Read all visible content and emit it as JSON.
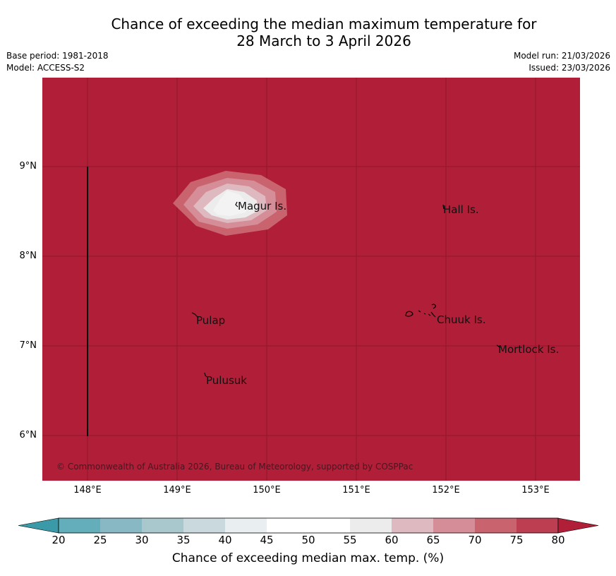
{
  "title": {
    "line1": "Chance of exceeding the median maximum temperature for",
    "line2": "28 March to 3 April 2026"
  },
  "meta": {
    "base_period": "Base period: 1981-2018",
    "model": "Model: ACCESS-S2",
    "model_run": "Model run: 21/03/2026",
    "issued": "Issued: 23/03/2026"
  },
  "map": {
    "background_color": "#b01e37",
    "lat_ticks": [
      "9°N",
      "8°N",
      "7°N",
      "6°N"
    ],
    "lon_ticks": [
      "148°E",
      "149°E",
      "150°E",
      "151°E",
      "152°E",
      "153°E"
    ],
    "places": {
      "magur": "Magur Is.",
      "hall": "Hall Is.",
      "pulap": "Pulap",
      "chuuk": "Chuuk Is.",
      "mortlock": "Mortlock Is.",
      "pulusuk": "Pulusuk"
    },
    "copyright": "© Commonwealth of Australia 2026, Bureau of Meteorology, supported by COSPPac"
  },
  "colorbar": {
    "label": "Chance of exceeding median max. temp. (%)",
    "ticks": [
      "20",
      "25",
      "30",
      "35",
      "40",
      "45",
      "50",
      "55",
      "60",
      "65",
      "70",
      "75",
      "80"
    ],
    "colors": [
      "#3b9aa8",
      "#64adbb",
      "#88b8c4",
      "#a9c8cd",
      "#cad9de",
      "#e9eff1",
      "#ffffff",
      "#ffffff",
      "#ececec",
      "#dfb9c0",
      "#d58d97",
      "#c9636e",
      "#bc3e50",
      "#b01e37"
    ]
  }
}
